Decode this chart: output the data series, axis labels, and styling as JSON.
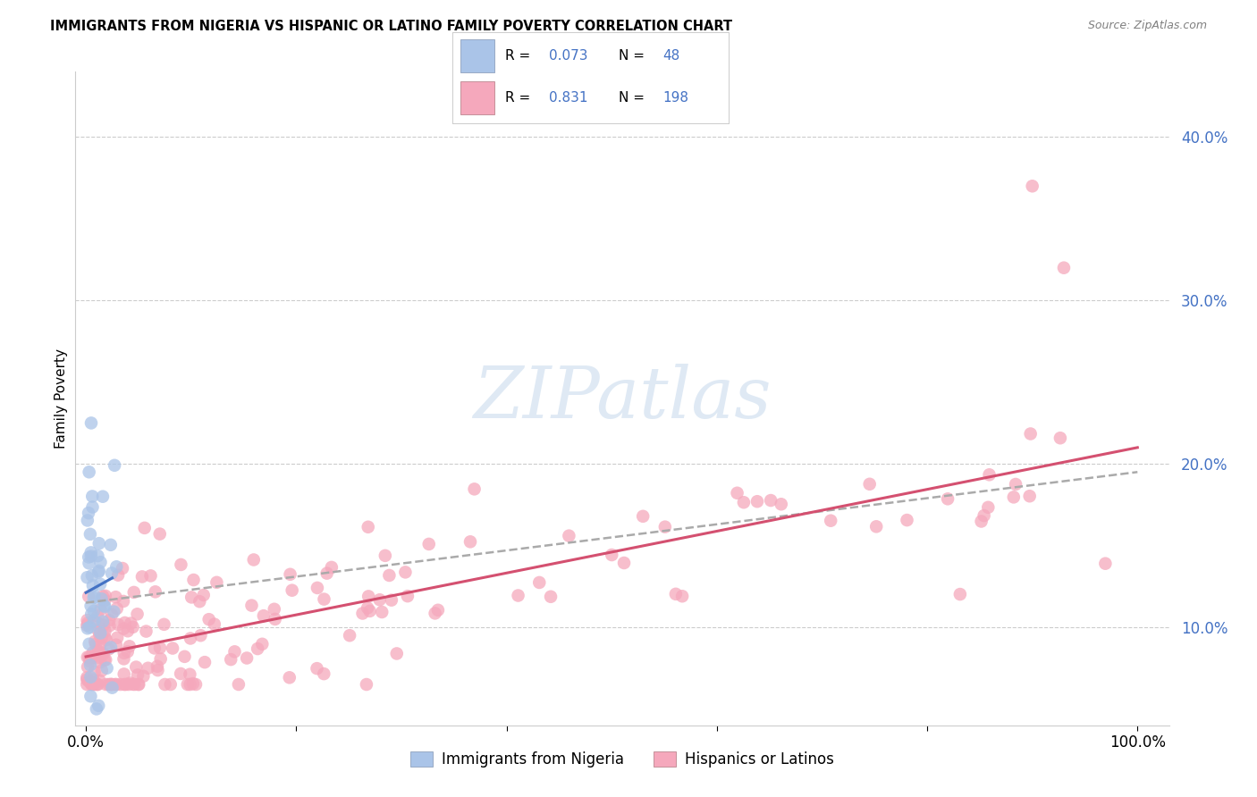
{
  "title": "IMMIGRANTS FROM NIGERIA VS HISPANIC OR LATINO FAMILY POVERTY CORRELATION CHART",
  "source": "Source: ZipAtlas.com",
  "ylabel": "Family Poverty",
  "xlim": [
    -0.01,
    1.03
  ],
  "ylim": [
    0.04,
    0.44
  ],
  "ytick_vals": [
    0.1,
    0.2,
    0.3,
    0.4
  ],
  "ytick_labels": [
    "10.0%",
    "20.0%",
    "30.0%",
    "40.0%"
  ],
  "xtick_vals": [
    0.0,
    1.0
  ],
  "xtick_labels": [
    "0.0%",
    "100.0%"
  ],
  "legend_r1": "0.073",
  "legend_n1": "48",
  "legend_r2": "0.831",
  "legend_n2": "198",
  "watermark": "ZIPatlas",
  "nigeria_color": "#aac4e8",
  "hispanic_color": "#f5a8bc",
  "nigeria_line_color": "#4472c4",
  "hispanic_line_color": "#d45070",
  "gray_dash_color": "#aaaaaa",
  "background_color": "#ffffff",
  "grid_color": "#cccccc"
}
